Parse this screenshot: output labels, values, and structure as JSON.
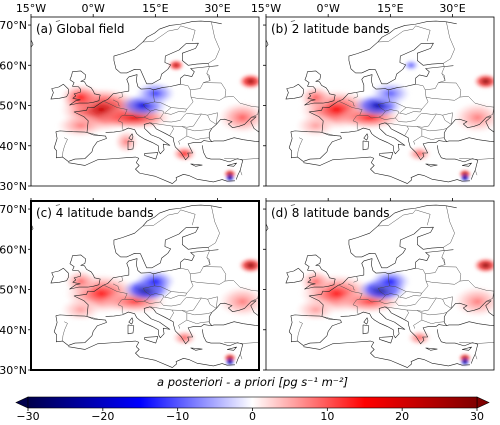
{
  "chart_data": {
    "type": "heatmap",
    "colorbar": {
      "label": "a posteriori - a priori [pg s⁻¹ m⁻²]",
      "min": -30,
      "max": 30,
      "ticks": [
        "−30",
        "−20",
        "−10",
        "0",
        "10",
        "20",
        "30"
      ],
      "tick_values": [
        -30,
        -20,
        -10,
        0,
        10,
        20,
        30
      ],
      "colormap": "seismic",
      "extend": "both"
    },
    "axes": {
      "lon_ticks": [
        "15°W",
        "0°W",
        "15°E",
        "30°E"
      ],
      "lon_values": [
        -15,
        0,
        15,
        30
      ],
      "lat_ticks": [
        "70°N",
        "60°N",
        "50°N",
        "40°N",
        "30°N"
      ],
      "lat_values": [
        70,
        60,
        50,
        40,
        30
      ],
      "lon_range": [
        -15,
        40
      ],
      "lat_range": [
        30,
        72
      ]
    },
    "panels": [
      {
        "label": "(a) Global field",
        "highlighted": false,
        "blobs": [
          [
            2,
            49,
            22,
            10,
            5.5
          ],
          [
            10,
            47,
            18,
            9,
            3
          ],
          [
            -3,
            52,
            14,
            5,
            3.5
          ],
          [
            -3,
            45,
            8,
            6,
            3
          ],
          [
            12,
            50,
            -18,
            6,
            3
          ],
          [
            15,
            53,
            -12,
            5,
            3
          ],
          [
            20,
            60,
            25,
            2,
            1.5
          ],
          [
            38,
            56,
            28,
            3,
            2
          ],
          [
            36,
            47,
            10,
            6,
            4
          ],
          [
            8,
            41,
            8,
            3,
            3
          ],
          [
            22,
            38,
            14,
            3,
            2
          ],
          [
            33,
            33,
            30,
            1.6,
            1.2
          ],
          [
            33,
            32,
            -30,
            1.2,
            1
          ]
        ]
      },
      {
        "label": "(b) 2 latitude bands",
        "highlighted": false,
        "blobs": [
          [
            2,
            49,
            16,
            9,
            5
          ],
          [
            10,
            47,
            14,
            8,
            3
          ],
          [
            -3,
            52,
            10,
            4,
            3
          ],
          [
            -3,
            45,
            6,
            5,
            3
          ],
          [
            12,
            50,
            -22,
            6,
            3
          ],
          [
            15,
            53,
            -10,
            5,
            3
          ],
          [
            20,
            60,
            -10,
            2,
            1.5
          ],
          [
            38,
            56,
            30,
            3,
            2
          ],
          [
            36,
            47,
            8,
            6,
            4
          ],
          [
            22,
            38,
            10,
            3,
            2
          ],
          [
            33,
            33,
            30,
            1.6,
            1.2
          ],
          [
            33,
            32,
            -30,
            1.2,
            1
          ]
        ]
      },
      {
        "label": "(c) 4 latitude bands",
        "highlighted": true,
        "blobs": [
          [
            2,
            49,
            14,
            9,
            5
          ],
          [
            10,
            47,
            12,
            8,
            3
          ],
          [
            -3,
            52,
            9,
            4,
            3
          ],
          [
            -3,
            45,
            6,
            5,
            3
          ],
          [
            13,
            50,
            -26,
            6,
            3
          ],
          [
            15,
            52,
            -14,
            5,
            3
          ],
          [
            38,
            56,
            30,
            3,
            2
          ],
          [
            36,
            47,
            8,
            6,
            4
          ],
          [
            22,
            38,
            10,
            3,
            2
          ],
          [
            33,
            33,
            30,
            1.6,
            1.2
          ],
          [
            33,
            32,
            -30,
            1.2,
            1
          ]
        ]
      },
      {
        "label": "(d) 8 latitude bands",
        "highlighted": false,
        "blobs": [
          [
            2,
            49,
            14,
            9,
            5
          ],
          [
            10,
            47,
            12,
            8,
            3
          ],
          [
            -3,
            52,
            9,
            4,
            3
          ],
          [
            -3,
            45,
            6,
            5,
            3
          ],
          [
            13,
            50,
            -26,
            6,
            3
          ],
          [
            15,
            52,
            -14,
            5,
            3
          ],
          [
            38,
            56,
            30,
            3,
            2
          ],
          [
            36,
            47,
            8,
            6,
            4
          ],
          [
            22,
            38,
            10,
            3,
            2
          ],
          [
            33,
            33,
            30,
            1.6,
            1.2
          ],
          [
            33,
            32,
            -30,
            1.2,
            1
          ]
        ]
      }
    ]
  }
}
